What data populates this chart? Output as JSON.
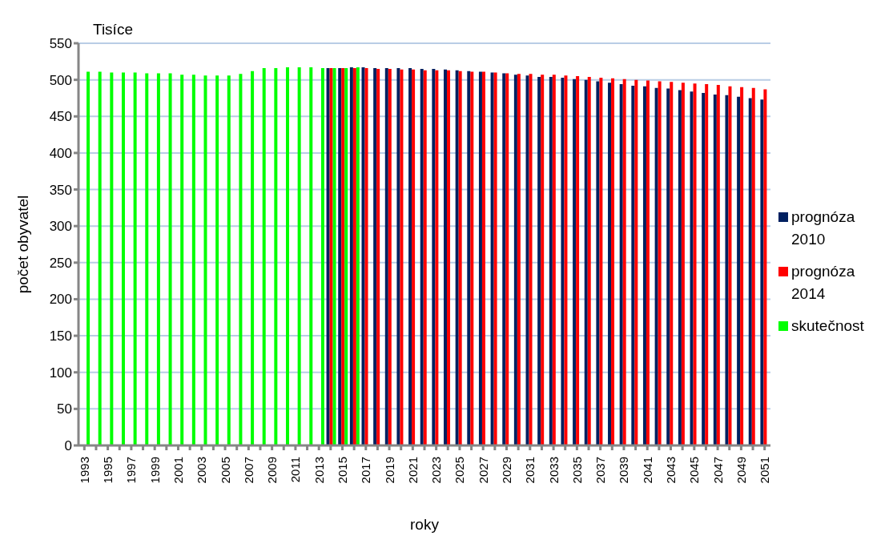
{
  "chart_data": {
    "type": "bar",
    "xlabel": "roky",
    "ylabel": "počet obyvatel",
    "annotations": [
      "Tisíce"
    ],
    "categories": [
      "1993",
      null,
      "1995",
      null,
      "1997",
      null,
      "1999",
      null,
      "2001",
      null,
      "2003",
      null,
      "2005",
      null,
      "2007",
      null,
      "2009",
      null,
      "2011",
      null,
      "2013",
      null,
      "2015",
      null,
      "2017",
      null,
      "2019",
      null,
      "2021",
      null,
      "2023",
      null,
      "2025",
      null,
      "2027",
      null,
      "2029",
      null,
      "2031",
      null,
      "2033",
      null,
      "2035",
      null,
      "2037",
      null,
      "2039",
      null,
      "2041",
      null,
      "2043",
      null,
      "2045",
      null,
      "2047",
      null,
      "2049",
      null,
      "2051"
    ],
    "series": [
      {
        "name": "prognóza 2010",
        "color": "#002060",
        "values": [
          null,
          null,
          null,
          null,
          null,
          null,
          null,
          null,
          null,
          null,
          null,
          null,
          null,
          null,
          null,
          null,
          null,
          null,
          null,
          null,
          null,
          516,
          516,
          517,
          517,
          516,
          516,
          516,
          516,
          515,
          515,
          514,
          513,
          512,
          511,
          510,
          509,
          507,
          506,
          504,
          504,
          503,
          501,
          500,
          498,
          496,
          494,
          492,
          491,
          489,
          488,
          486,
          484,
          482,
          480,
          479,
          477,
          475,
          473
        ]
      },
      {
        "name": "prognóza 2014",
        "color": "#ff0000",
        "values": [
          null,
          null,
          null,
          null,
          null,
          null,
          null,
          null,
          null,
          null,
          null,
          null,
          null,
          null,
          null,
          null,
          null,
          null,
          null,
          null,
          null,
          516,
          516,
          516,
          516,
          515,
          515,
          514,
          514,
          513,
          513,
          513,
          512,
          511,
          511,
          510,
          509,
          508,
          508,
          507,
          507,
          506,
          505,
          504,
          503,
          502,
          501,
          500,
          499,
          498,
          497,
          496,
          495,
          494,
          493,
          491,
          490,
          489,
          487
        ]
      },
      {
        "name": "skutečnost",
        "color": "#00ff00",
        "values": [
          511,
          511,
          510,
          510,
          510,
          509,
          509,
          509,
          507,
          507,
          506,
          506,
          506,
          508,
          512,
          516,
          516,
          517,
          517,
          517,
          516,
          516,
          516,
          517,
          null,
          null,
          null,
          null,
          null,
          null,
          null,
          null,
          null,
          null,
          null,
          null,
          null,
          null,
          null,
          null,
          null,
          null,
          null,
          null,
          null,
          null,
          null,
          null,
          null,
          null,
          null,
          null,
          null,
          null,
          null,
          null,
          null,
          null,
          null
        ]
      }
    ],
    "ylim": [
      0,
      550
    ],
    "yticks": [
      0,
      50,
      100,
      150,
      200,
      250,
      300,
      350,
      400,
      450,
      500,
      550
    ],
    "grid": "y",
    "legend": "right"
  }
}
